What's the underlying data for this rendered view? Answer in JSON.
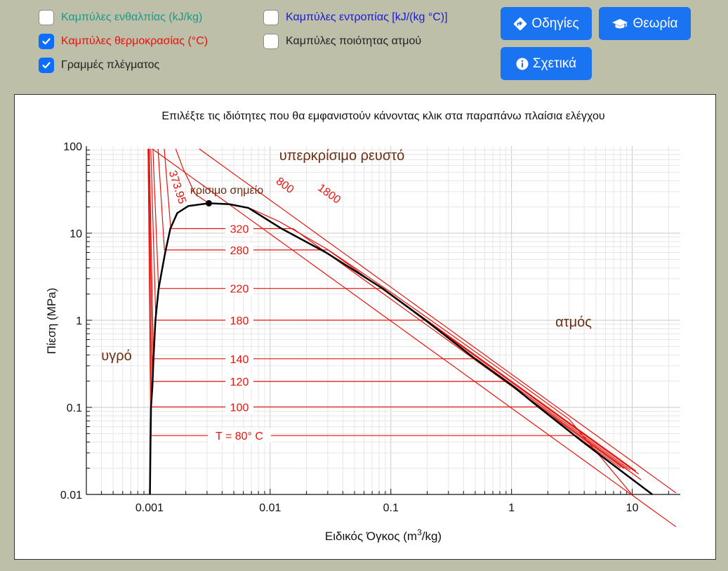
{
  "checkboxes": [
    {
      "label": "Καμπύλες ενθαλπίας (kJ/kg)",
      "checked": false,
      "color": "#1a9a8a"
    },
    {
      "label": "Καμπύλες θερμοκρασίας (°C)",
      "checked": true,
      "color": "#e8120c"
    },
    {
      "label": "Γραμμές πλέγματος",
      "checked": true,
      "color": "#222222"
    },
    {
      "label": "Καμπύλες εντροπίας [kJ/(kg °C)]",
      "checked": false,
      "color": "#1a1ad8"
    },
    {
      "label": "Καμπύλες ποιότητας ατμού",
      "checked": false,
      "color": "#222222"
    }
  ],
  "buttons": {
    "guide": {
      "label": "Οδηγίες",
      "icon": "directions-icon"
    },
    "theory": {
      "label": "Θεωρία",
      "icon": "graduation-cap-icon"
    },
    "about": {
      "label": "Σχετικά",
      "icon": "info-icon"
    }
  },
  "chart_data": {
    "type": "line",
    "title": "Επιλέξτε τις ιδιότητες που θα εμφανιστούν κάνοντας κλικ στα παραπάνω πλαίσια ελέγχου",
    "xlabel": "Ειδικός Όγκος (m³/kg)",
    "ylabel": "Πίεση (MPa)",
    "xscale": "log",
    "yscale": "log",
    "xlim": [
      0.0003,
      25
    ],
    "ylim": [
      0.01,
      100
    ],
    "xticks": [
      "0.001",
      "0.01",
      "0.1",
      "1",
      "10"
    ],
    "yticks": [
      "0.01",
      "0.1",
      "1",
      "10",
      "100"
    ],
    "grid": true,
    "colors": {
      "saturation": "#000000",
      "isotherm": "#e8120c",
      "region_label": "#6b2e12"
    },
    "region_labels": {
      "liquid": "υγρό",
      "vapor": "ατμός",
      "supercritical": "υπερκρίσιμο ρευστό",
      "critical_point": "κρίσιμο σημείο"
    },
    "critical_point": {
      "v": 0.003106,
      "p": 22.064
    },
    "saturation_dome": [
      {
        "v": 0.00101,
        "p": 0.01
      },
      {
        "v": 0.00102,
        "p": 0.04
      },
      {
        "v": 0.00103,
        "p": 0.1
      },
      {
        "v": 0.00106,
        "p": 0.18
      },
      {
        "v": 0.00108,
        "p": 0.36
      },
      {
        "v": 0.00112,
        "p": 1.0
      },
      {
        "v": 0.00119,
        "p": 2.3
      },
      {
        "v": 0.00135,
        "p": 6.0
      },
      {
        "v": 0.00149,
        "p": 11.3
      },
      {
        "v": 0.0017,
        "p": 17.0
      },
      {
        "v": 0.0021,
        "p": 20.5
      },
      {
        "v": 0.003106,
        "p": 22.064
      },
      {
        "v": 0.0046,
        "p": 21.5
      },
      {
        "v": 0.0066,
        "p": 19.5
      },
      {
        "v": 0.0124,
        "p": 11.3
      },
      {
        "v": 0.029,
        "p": 6.0
      },
      {
        "v": 0.0861,
        "p": 2.3
      },
      {
        "v": 0.194,
        "p": 1.0
      },
      {
        "v": 0.5,
        "p": 0.36
      },
      {
        "v": 1.0,
        "p": 0.18
      },
      {
        "v": 1.69,
        "p": 0.1
      },
      {
        "v": 3.9,
        "p": 0.04
      },
      {
        "v": 14.67,
        "p": 0.01
      }
    ],
    "isotherms": [
      {
        "label": "T = 80° C",
        "T": 80,
        "psat": 0.0474,
        "vf": 0.00103,
        "vg": 3.41
      },
      {
        "label": "100",
        "T": 100,
        "psat": 0.1014,
        "vf": 0.00104,
        "vg": 1.67
      },
      {
        "label": "120",
        "T": 120,
        "psat": 0.1985,
        "vf": 0.00106,
        "vg": 0.89
      },
      {
        "label": "140",
        "T": 140,
        "psat": 0.3615,
        "vf": 0.00108,
        "vg": 0.51
      },
      {
        "label": "180",
        "T": 180,
        "psat": 1.0021,
        "vf": 0.00113,
        "vg": 0.194
      },
      {
        "label": "220",
        "T": 220,
        "psat": 2.319,
        "vf": 0.00119,
        "vg": 0.0861
      },
      {
        "label": "280",
        "T": 280,
        "psat": 6.416,
        "vf": 0.00133,
        "vg": 0.0302
      },
      {
        "label": "320",
        "T": 320,
        "psat": 11.28,
        "vf": 0.0015,
        "vg": 0.0155
      },
      {
        "label": "373.95",
        "T": 373.95,
        "psat": 22.064,
        "vf": 0.00311,
        "vg": 0.00311
      },
      {
        "label": "800",
        "T": 800
      },
      {
        "label": "1800",
        "T": 1800
      }
    ]
  }
}
